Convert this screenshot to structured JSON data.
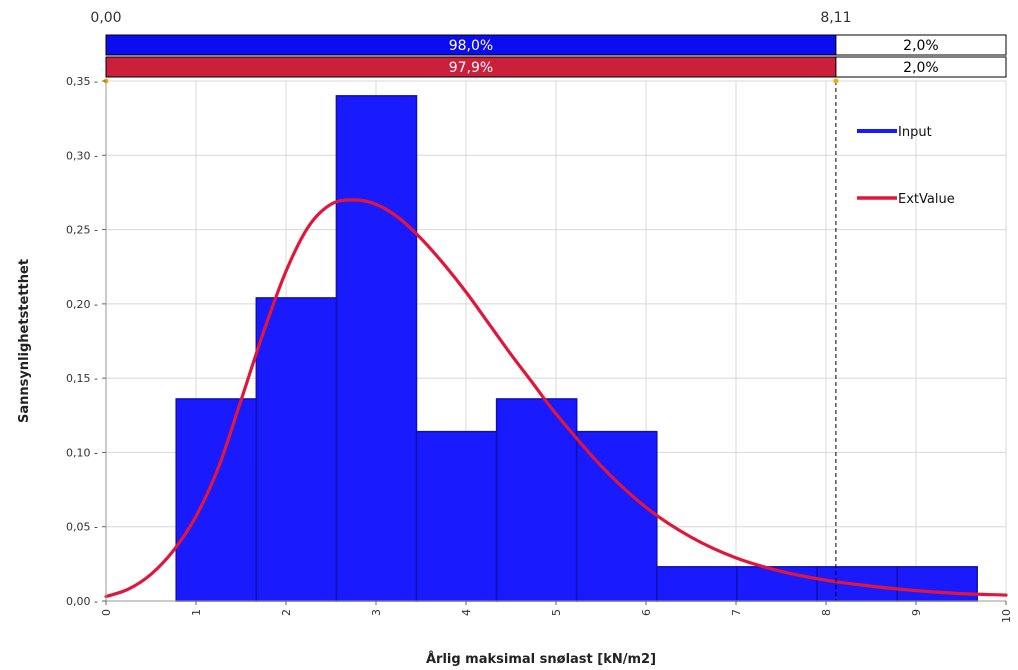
{
  "chart_data": {
    "type": "bar",
    "xlabel": "Årlig maksimal snølast [kN/m2]",
    "ylabel": "Sannsynlighetstetthet",
    "xlim": [
      0,
      10
    ],
    "ylim": [
      0,
      0.35
    ],
    "x_ticks": [
      "0",
      "1",
      "2",
      "3",
      "4",
      "5",
      "6",
      "7",
      "8",
      "9",
      "10"
    ],
    "y_ticks": [
      "0,00",
      "0,05",
      "0,10",
      "0,15",
      "0,20",
      "0,25",
      "0,30",
      "0,35"
    ],
    "grid": true,
    "bins": [
      {
        "x0": 0.78,
        "x1": 1.67,
        "value": 0.136
      },
      {
        "x0": 1.67,
        "x1": 2.56,
        "value": 0.204
      },
      {
        "x0": 2.56,
        "x1": 3.45,
        "value": 0.34
      },
      {
        "x0": 3.45,
        "x1": 4.34,
        "value": 0.114
      },
      {
        "x0": 4.34,
        "x1": 5.23,
        "value": 0.136
      },
      {
        "x0": 5.23,
        "x1": 6.12,
        "value": 0.114
      },
      {
        "x0": 6.12,
        "x1": 7.01,
        "value": 0.023
      },
      {
        "x0": 7.01,
        "x1": 7.9,
        "value": 0.023
      },
      {
        "x0": 7.9,
        "x1": 8.79,
        "value": 0.023
      },
      {
        "x0": 8.79,
        "x1": 9.68,
        "value": 0.023
      }
    ],
    "series": [
      {
        "name": "Input",
        "color": "#1a1aff"
      },
      {
        "name": "ExtValue",
        "color": "#e0163a",
        "x": [
          0,
          0.25,
          0.5,
          0.75,
          1.0,
          1.25,
          1.5,
          1.75,
          2.0,
          2.25,
          2.5,
          2.75,
          3.0,
          3.25,
          3.5,
          3.75,
          4.0,
          4.25,
          4.5,
          4.75,
          5.0,
          5.5,
          6.0,
          6.5,
          7.0,
          7.5,
          8.0,
          8.5,
          9.0,
          9.5,
          10.0
        ],
        "y": [
          0.003,
          0.008,
          0.018,
          0.034,
          0.057,
          0.09,
          0.135,
          0.181,
          0.222,
          0.252,
          0.267,
          0.27,
          0.267,
          0.258,
          0.244,
          0.227,
          0.208,
          0.187,
          0.166,
          0.146,
          0.126,
          0.091,
          0.063,
          0.043,
          0.029,
          0.02,
          0.014,
          0.01,
          0.007,
          0.005,
          0.004
        ]
      }
    ],
    "legend": {
      "position": "top-right"
    },
    "delimiters": {
      "left": 0.0,
      "right": 8.11,
      "left_label": "0,00",
      "right_label": "8,11"
    },
    "probability_bars": [
      {
        "series": "Input",
        "left_label": "98,0%",
        "right_label": "2,0%"
      },
      {
        "series": "ExtValue",
        "left_label": "97,9%",
        "right_label": "2,0%"
      }
    ]
  }
}
